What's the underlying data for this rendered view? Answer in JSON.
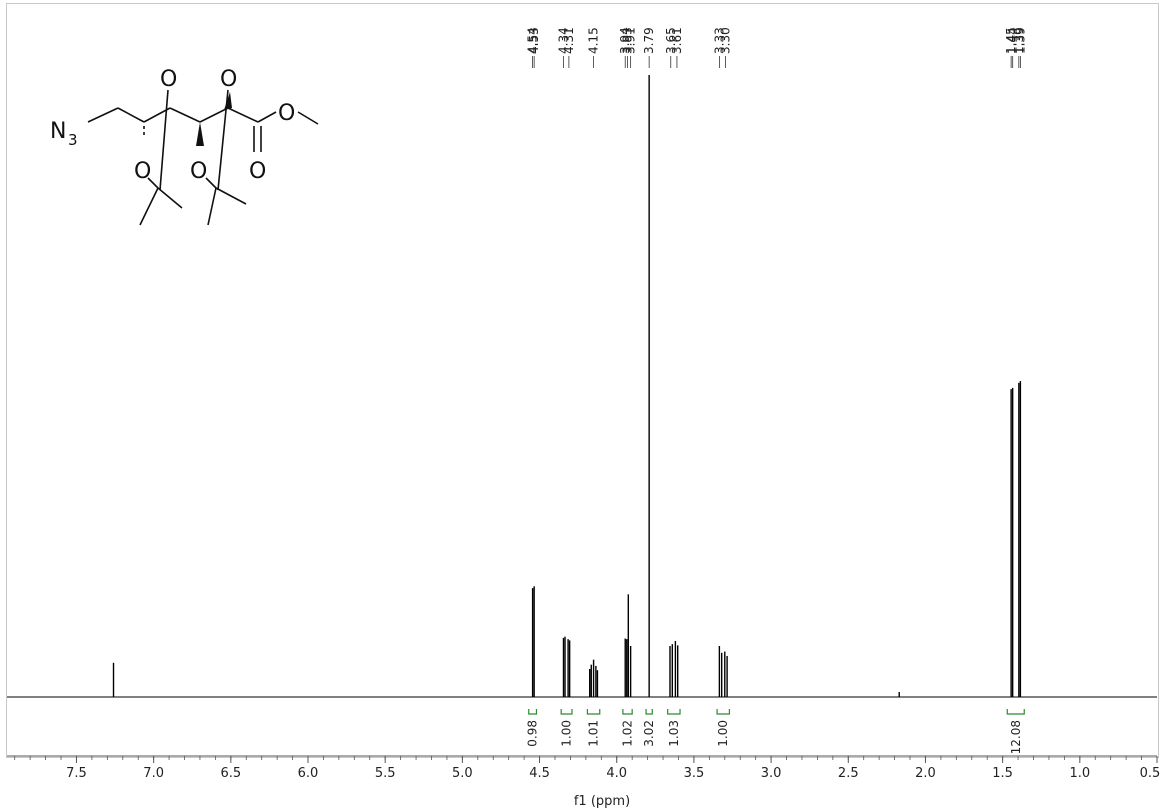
{
  "chart_data": {
    "type": "line",
    "title": "",
    "xlabel": "f1 (ppm)",
    "ylabel": "",
    "xlim": [
      7.95,
      0.5
    ],
    "ylim": [
      0,
      1.0
    ],
    "grid": false,
    "x_ticks": [
      "7.5",
      "7.0",
      "6.5",
      "6.0",
      "5.5",
      "5.0",
      "4.5",
      "4.0",
      "3.5",
      "3.0",
      "2.5",
      "2.0",
      "1.5",
      "1.0",
      "0.5"
    ],
    "x_tick_values": [
      7.5,
      7.0,
      6.5,
      6.0,
      5.5,
      5.0,
      4.5,
      4.0,
      3.5,
      3.0,
      2.5,
      2.0,
      1.5,
      1.0,
      0.5
    ],
    "peaks": [
      {
        "ppm": 7.26,
        "height": 0.055
      },
      {
        "ppm": 4.545,
        "height": 0.175
      },
      {
        "ppm": 4.535,
        "height": 0.178
      },
      {
        "ppm": 4.345,
        "height": 0.095
      },
      {
        "ppm": 4.335,
        "height": 0.097
      },
      {
        "ppm": 4.315,
        "height": 0.093
      },
      {
        "ppm": 4.305,
        "height": 0.091
      },
      {
        "ppm": 4.175,
        "height": 0.045
      },
      {
        "ppm": 4.165,
        "height": 0.052
      },
      {
        "ppm": 4.15,
        "height": 0.06
      },
      {
        "ppm": 4.135,
        "height": 0.05
      },
      {
        "ppm": 4.125,
        "height": 0.043
      },
      {
        "ppm": 3.945,
        "height": 0.094
      },
      {
        "ppm": 3.935,
        "height": 0.093
      },
      {
        "ppm": 3.925,
        "height": 0.165
      },
      {
        "ppm": 3.91,
        "height": 0.082
      },
      {
        "ppm": 3.79,
        "height": 1.0
      },
      {
        "ppm": 3.655,
        "height": 0.082
      },
      {
        "ppm": 3.64,
        "height": 0.085
      },
      {
        "ppm": 3.62,
        "height": 0.09
      },
      {
        "ppm": 3.605,
        "height": 0.083
      },
      {
        "ppm": 3.335,
        "height": 0.082
      },
      {
        "ppm": 3.32,
        "height": 0.071
      },
      {
        "ppm": 3.3,
        "height": 0.073
      },
      {
        "ppm": 3.285,
        "height": 0.066
      },
      {
        "ppm": 2.17,
        "height": 0.008
      },
      {
        "ppm": 1.445,
        "height": 0.495
      },
      {
        "ppm": 1.435,
        "height": 0.497
      },
      {
        "ppm": 1.395,
        "height": 0.505
      },
      {
        "ppm": 1.385,
        "height": 0.508
      }
    ],
    "peak_labels": [
      {
        "text": "4.54",
        "ppm": 4.545
      },
      {
        "text": "4.53",
        "ppm": 4.535
      },
      {
        "text": "4.34",
        "ppm": 4.345
      },
      {
        "text": "4.31",
        "ppm": 4.31
      },
      {
        "text": "4.15",
        "ppm": 4.15
      },
      {
        "text": "3.94",
        "ppm": 3.945
      },
      {
        "text": "3.93",
        "ppm": 3.93
      },
      {
        "text": "3.91",
        "ppm": 3.91
      },
      {
        "text": "3.79",
        "ppm": 3.79
      },
      {
        "text": "3.65",
        "ppm": 3.65
      },
      {
        "text": "3.61",
        "ppm": 3.61
      },
      {
        "text": "3.33",
        "ppm": 3.335
      },
      {
        "text": "3.30",
        "ppm": 3.295
      },
      {
        "text": "1.45",
        "ppm": 1.445
      },
      {
        "text": "1.44",
        "ppm": 1.435
      },
      {
        "text": "1.39",
        "ppm": 1.395
      },
      {
        "text": "1.39",
        "ppm": 1.385
      }
    ],
    "integrals": [
      {
        "value": "0.98",
        "from": 4.57,
        "to": 4.52
      },
      {
        "value": "1.00",
        "from": 4.36,
        "to": 4.29
      },
      {
        "value": "1.01",
        "from": 4.19,
        "to": 4.11
      },
      {
        "value": "1.02",
        "from": 3.96,
        "to": 3.9
      },
      {
        "value": "3.02",
        "from": 3.81,
        "to": 3.77
      },
      {
        "value": "1.03",
        "from": 3.67,
        "to": 3.59
      },
      {
        "value": "1.00",
        "from": 3.35,
        "to": 3.27
      },
      {
        "value": "12.08",
        "from": 1.47,
        "to": 1.36
      }
    ],
    "colors": {
      "spectrum": "#000000",
      "integral": "#2e8b2e",
      "axis": "#555555"
    }
  },
  "structure": {
    "labels": {
      "azide": "N",
      "azide_sub": "3",
      "o1": "O",
      "o2": "O",
      "o3": "O",
      "o4": "O",
      "o5": "O",
      "o6": "O"
    }
  }
}
